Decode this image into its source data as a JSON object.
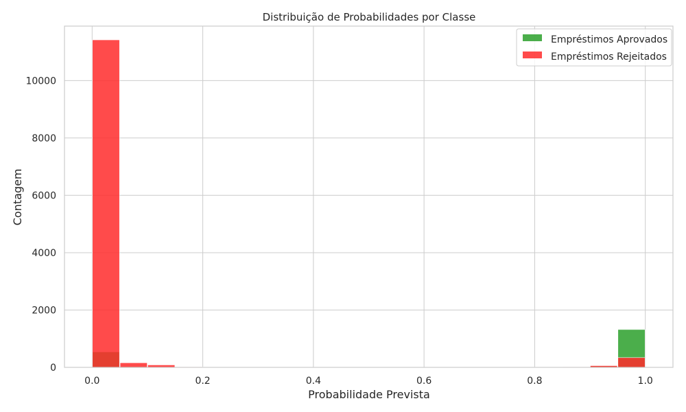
{
  "chart_data": {
    "type": "bar",
    "title": "Distribuição de Probabilidades por Classe",
    "xlabel": "Probabilidade Prevista",
    "ylabel": "Contagem",
    "xlim": [
      -0.05,
      1.05
    ],
    "ylim": [
      0,
      11900
    ],
    "xticks": [
      0.0,
      0.2,
      0.4,
      0.6,
      0.8,
      1.0
    ],
    "xtick_labels": [
      "0.0",
      "0.2",
      "0.4",
      "0.6",
      "0.8",
      "1.0"
    ],
    "yticks": [
      0,
      2000,
      4000,
      6000,
      8000,
      10000
    ],
    "ytick_labels": [
      "0",
      "2000",
      "4000",
      "6000",
      "8000",
      "10000"
    ],
    "grid": true,
    "legend_position": "top-right",
    "bin_edges": [
      0.0,
      0.05,
      0.1,
      0.15,
      0.2,
      0.25,
      0.3,
      0.35,
      0.4,
      0.45,
      0.5,
      0.55,
      0.6,
      0.65,
      0.7,
      0.75,
      0.8,
      0.85,
      0.9,
      0.95,
      1.0
    ],
    "series": [
      {
        "name": "Empréstimos Aprovados",
        "color": "#2ca02c",
        "values": [
          540,
          30,
          20,
          10,
          5,
          5,
          5,
          5,
          5,
          5,
          5,
          5,
          5,
          5,
          5,
          5,
          10,
          15,
          45,
          1320
        ]
      },
      {
        "name": "Empréstimos Rejeitados",
        "color": "#ff2b2b",
        "values": [
          11420,
          160,
          85,
          20,
          10,
          5,
          5,
          5,
          5,
          5,
          5,
          5,
          5,
          5,
          5,
          5,
          10,
          15,
          60,
          340
        ]
      }
    ]
  }
}
